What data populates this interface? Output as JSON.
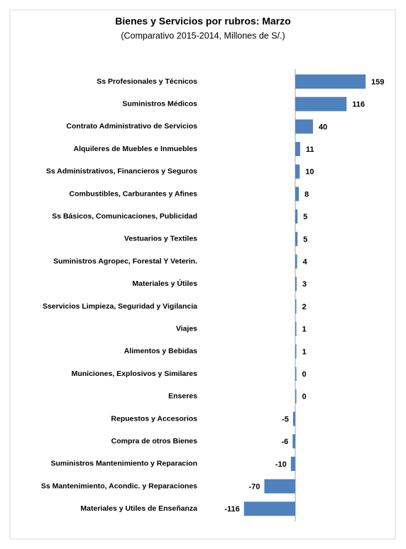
{
  "chart_data": {
    "type": "bar",
    "orientation": "horizontal",
    "title": "Bienes y Servicios por rubros: Marzo",
    "subtitle": "(Comparativo 2015-2014, Millones de S/.)",
    "categories": [
      "Ss Profesionales y Técnicos",
      "Suministros Médicos",
      "Contrato Administrativo de Servicios",
      "Alquileres de Muebles e Inmuebles",
      "Ss Administrativos, Financieros y Seguros",
      "Combustibles, Carburantes y Afines",
      "Ss Básicos, Comunicaciones, Publicidad",
      "Vestuarios y Textiles",
      "Suministros Agropec, Forestal Y Veterin.",
      "Materiales y Útiles",
      "Sservicios Limpieza, Seguridad y Vigilancia",
      "Viajes",
      "Alimentos y Bebidas",
      "Municiones, Explosivos y Similares",
      "Enseres",
      "Repuestos y Accesorios",
      "Compra de otros Bienes",
      "Suministros Mantenimiento y Reparacion",
      "Ss Mantenimiento, Acondic. y Reparaciones",
      "Materiales y Utiles de Enseñanza"
    ],
    "values": [
      159,
      116,
      40,
      11,
      10,
      8,
      5,
      5,
      4,
      3,
      2,
      1,
      1,
      0,
      0,
      -5,
      -6,
      -10,
      -70,
      -116
    ],
    "color": "#4f81bd"
  }
}
